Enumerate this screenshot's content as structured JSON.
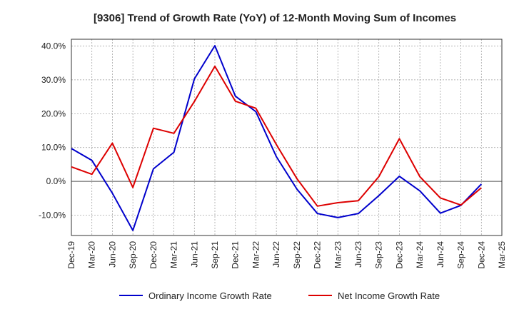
{
  "chart_data": {
    "type": "line",
    "title": "[9306]  Trend of Growth Rate (YoY) of 12-Month Moving Sum of Incomes",
    "xlabel": "",
    "ylabel": "",
    "x": [
      "Dec-19",
      "Mar-20",
      "Jun-20",
      "Sep-20",
      "Dec-20",
      "Mar-21",
      "Jun-21",
      "Sep-21",
      "Dec-21",
      "Mar-22",
      "Jun-22",
      "Sep-22",
      "Dec-22",
      "Mar-23",
      "Jun-23",
      "Sep-23",
      "Dec-23",
      "Mar-24",
      "Jun-24",
      "Sep-24",
      "Dec-24",
      "Mar-25"
    ],
    "y_ticks": [
      "-10.0%",
      "0.0%",
      "10.0%",
      "20.0%",
      "30.0%",
      "40.0%"
    ],
    "ylim": [
      -16,
      42
    ],
    "grid": true,
    "legend_position": "bottom",
    "series": [
      {
        "name": "Ordinary Income Growth Rate",
        "color": "#0000cc",
        "values": [
          9.7,
          6.2,
          -3.5,
          -14.5,
          3.7,
          8.6,
          30.3,
          40.1,
          25.2,
          20.6,
          7.3,
          -2.3,
          -9.5,
          -10.7,
          -9.5,
          -4.2,
          1.5,
          -2.8,
          -9.4,
          -7.1,
          -0.8,
          null
        ]
      },
      {
        "name": "Net Income Growth Rate",
        "color": "#dd0000",
        "values": [
          4.3,
          2.1,
          11.3,
          -1.8,
          15.7,
          14.2,
          23.6,
          34.0,
          23.7,
          21.6,
          10.9,
          0.8,
          -7.3,
          -6.3,
          -5.7,
          1.4,
          12.6,
          1.4,
          -4.9,
          -7.0,
          -1.9,
          null
        ]
      }
    ]
  }
}
